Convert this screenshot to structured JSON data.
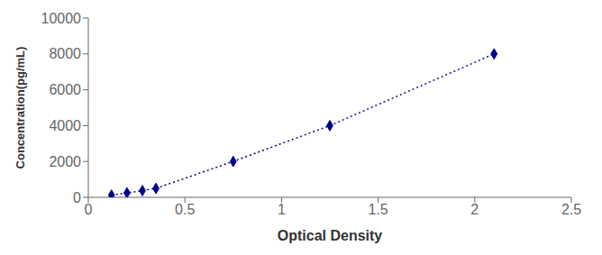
{
  "chart_data": {
    "type": "line",
    "x": [
      0.12,
      0.2,
      0.28,
      0.35,
      0.75,
      1.25,
      2.1
    ],
    "values": [
      125,
      250,
      375,
      500,
      2000,
      4000,
      8000
    ],
    "xlabel": "Optical Density",
    "ylabel": "Concentration(pg/mL)",
    "xlim": [
      0,
      2.5
    ],
    "ylim": [
      0,
      10000
    ],
    "xticks": [
      0,
      0.5,
      1,
      1.5,
      2,
      2.5
    ],
    "yticks": [
      0,
      2000,
      4000,
      6000,
      8000,
      10000
    ],
    "color": "#00008B",
    "marker": "diamond",
    "line_style": "dotted"
  }
}
